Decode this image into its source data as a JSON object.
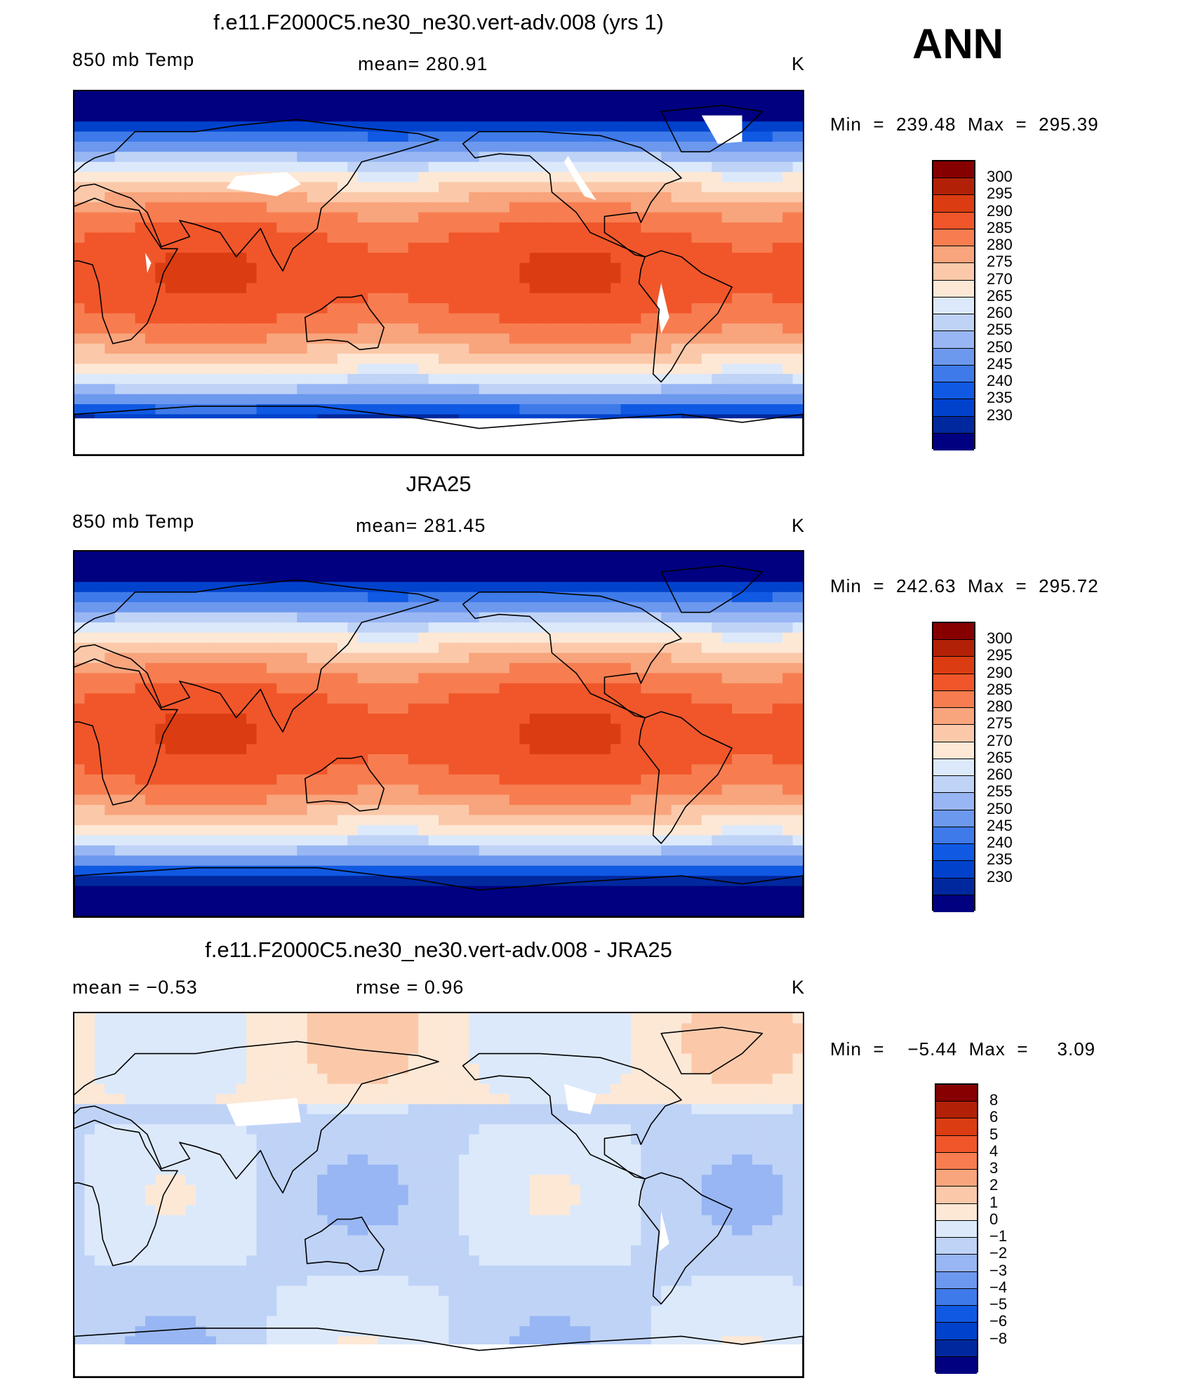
{
  "season": "ANN",
  "colors": {
    "temp_scale": [
      "#000080",
      "#00289e",
      "#0042cc",
      "#1059e3",
      "#3e7ae9",
      "#6c98ee",
      "#98b6f3",
      "#bfd3f7",
      "#dce9fb",
      "#fde8d6",
      "#fbc9aa",
      "#f8a47c",
      "#f77d50",
      "#f0562a",
      "#db3c12",
      "#b22107",
      "#870000"
    ],
    "diff_scale": [
      "#000080",
      "#00289e",
      "#0042cc",
      "#1059e3",
      "#3e7ae9",
      "#6c98ee",
      "#98b6f3",
      "#bfd3f7",
      "#dce9fb",
      "#fde8d6",
      "#fbc9aa",
      "#f8a47c",
      "#f77d50",
      "#f0562a",
      "#db3c12",
      "#b22107",
      "#870000"
    ],
    "missing": "#ffffff",
    "coast": "#000000"
  },
  "panels": [
    {
      "title": "f.e11.F2000C5.ne30_ne30.vert-adv.008 (yrs 1)",
      "left_label": "850 mb Temp",
      "center_label": "mean=  280.91",
      "unit": "K",
      "minmax": "Min  =  239.48  Max  =  295.39",
      "colorbar_labels": [
        "300",
        "295",
        "290",
        "285",
        "280",
        "275",
        "270",
        "265",
        "260",
        "255",
        "250",
        "245",
        "240",
        "235",
        "230"
      ],
      "field": "model"
    },
    {
      "title": "JRA25",
      "left_label": "850 mb Temp",
      "center_label": "mean=  281.45",
      "unit": "K",
      "minmax": "Min  =  242.63  Max  =  295.72",
      "colorbar_labels": [
        "300",
        "295",
        "290",
        "285",
        "280",
        "275",
        "270",
        "265",
        "260",
        "255",
        "250",
        "245",
        "240",
        "235",
        "230"
      ],
      "field": "obs"
    },
    {
      "title": "f.e11.F2000C5.ne30_ne30.vert-adv.008 - JRA25",
      "left_label": "mean  =    −0.53",
      "center_label": "rmse  =     0.96",
      "unit": "K",
      "minmax": "Min  =    −5.44  Max  =     3.09",
      "colorbar_labels": [
        "8",
        "6",
        "5",
        "4",
        "3",
        "2",
        "1",
        "0",
        "−1",
        "−2",
        "−3",
        "−4",
        "−5",
        "−6",
        "−8"
      ],
      "field": "diff"
    }
  ]
}
